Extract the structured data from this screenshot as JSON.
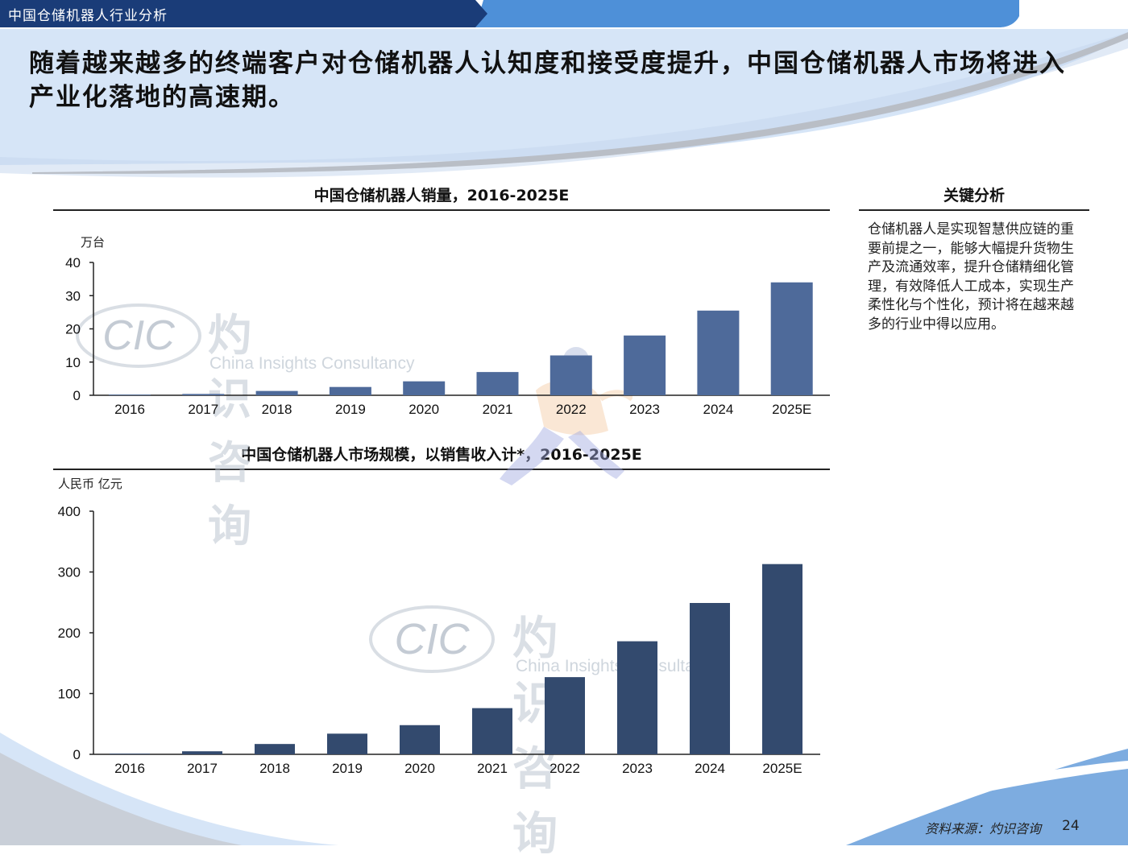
{
  "header": {
    "section_label": "中国仓储机器人行业分析",
    "headline": "随着越来越多的终端客户对仓储机器人认知度和接受度提升，中国仓储机器人市场将进入产业化落地的高速期。"
  },
  "watermark": {
    "logo_text": "CIC",
    "cn": "灼识咨询",
    "en": "China Insights Consultancy"
  },
  "sidebar": {
    "title": "关键分析",
    "body": "仓储机器人是实现智慧供应链的重要前提之一，能够大幅提升货物生产及流通效率，提升仓储精细化管理，有效降低人工成本，实现生产柔性化与个性化，预计将在越来越多的行业中得以应用。"
  },
  "footer": {
    "source": "资料来源：灼识咨询",
    "page_number": "24"
  },
  "colors": {
    "bar1": "#4e6a9a",
    "bar2": "#334a6e",
    "header_dark": "#1a3c78",
    "header_accent": "#1f73c4",
    "band": "#dce8f6"
  },
  "chart_data": [
    {
      "type": "bar",
      "title": "中国仓储机器人销量，2016-2025E",
      "unit_label": "万台",
      "categories": [
        "2016",
        "2017",
        "2018",
        "2019",
        "2020",
        "2021",
        "2022",
        "2023",
        "2024",
        "2025E"
      ],
      "values": [
        0.1,
        0.4,
        1.3,
        2.5,
        4.2,
        7.0,
        12.0,
        18.0,
        25.5,
        34.0
      ],
      "yticks": [
        "0",
        "10",
        "20",
        "30",
        "40"
      ],
      "ylim": [
        0,
        40
      ],
      "grid": false
    },
    {
      "type": "bar",
      "title": "中国仓储机器人市场规模，以销售收入计*，2016-2025E",
      "unit_label": "人民币 亿元",
      "categories": [
        "2016",
        "2017",
        "2018",
        "2019",
        "2020",
        "2021",
        "2022",
        "2023",
        "2024",
        "2025E"
      ],
      "values": [
        1,
        5,
        17,
        34,
        48,
        76,
        127,
        186,
        249,
        313
      ],
      "yticks": [
        "0",
        "100",
        "200",
        "300",
        "400"
      ],
      "ylim": [
        0,
        400
      ],
      "grid": false
    }
  ]
}
